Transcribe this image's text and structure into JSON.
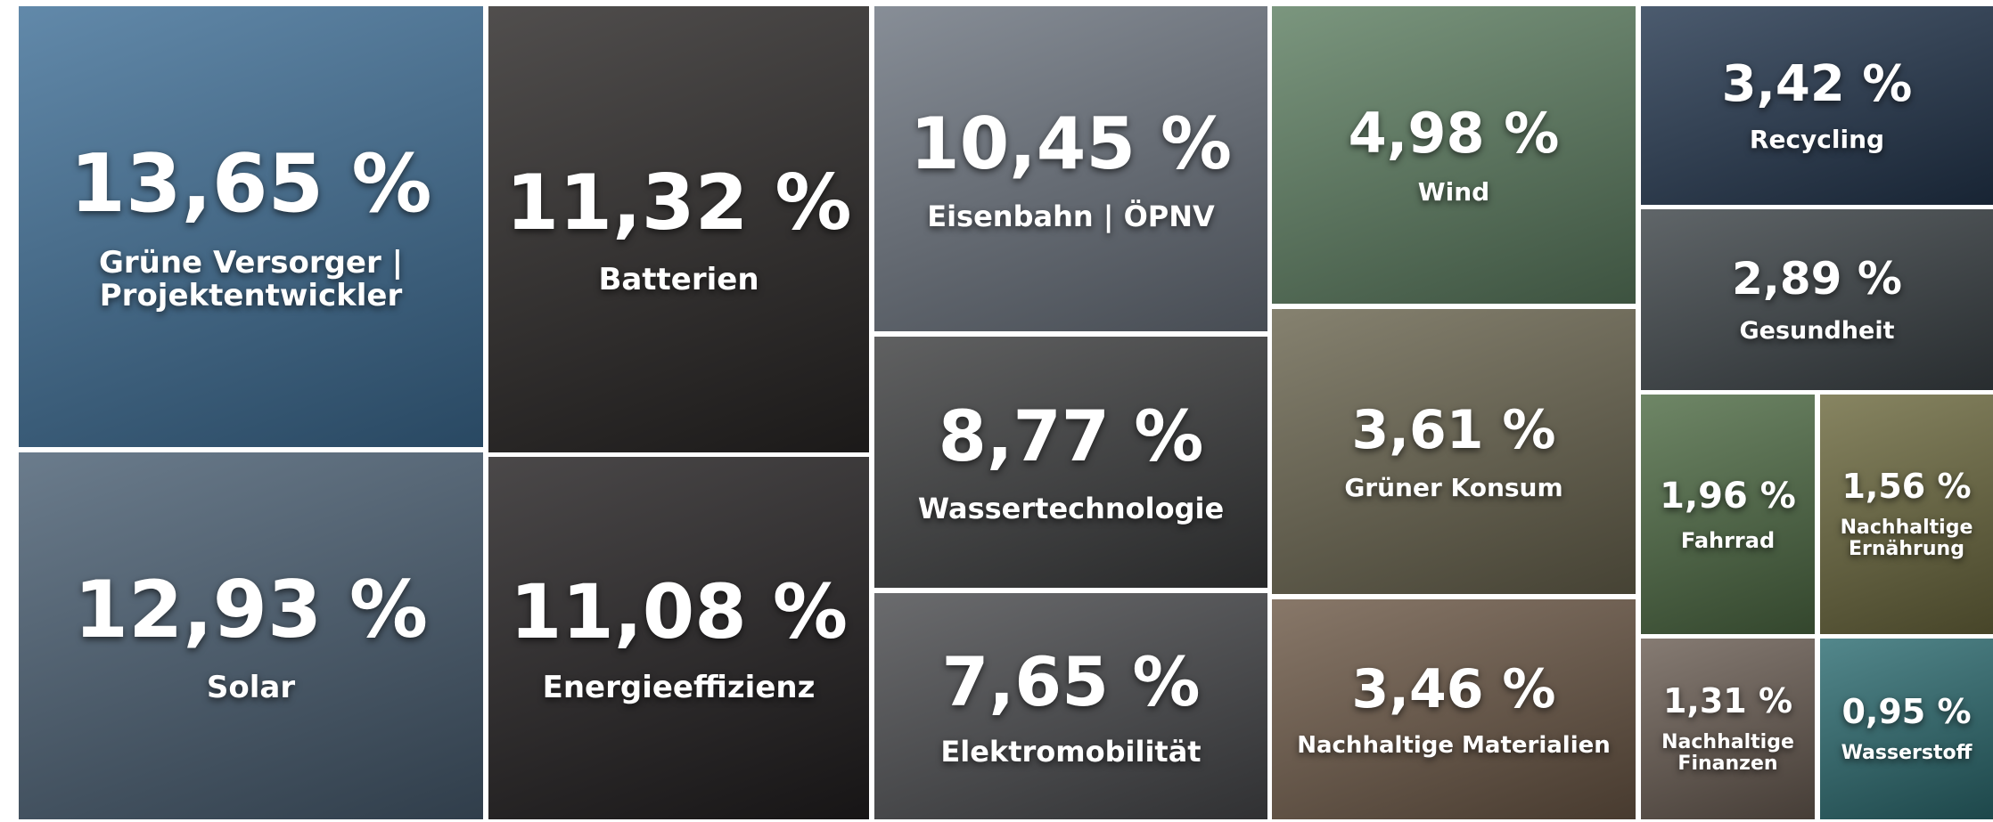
{
  "chart_data": {
    "type": "treemap",
    "categories": [
      "Grüne Versorger | Projektentwickler",
      "Solar",
      "Batterien",
      "Energieeffizienz",
      "Eisenbahn | ÖPNV",
      "Wassertechnologie",
      "Elektromobilität",
      "Wind",
      "Grüner Konsum",
      "Nachhaltige Materialien",
      "Recycling",
      "Gesundheit",
      "Fahrrad",
      "Nachhaltige Ernährung",
      "Nachhaltige Finanzen",
      "Wasserstoff"
    ],
    "values": [
      13.65,
      12.93,
      11.32,
      11.08,
      10.45,
      8.77,
      7.65,
      4.98,
      3.61,
      3.46,
      3.42,
      2.89,
      1.96,
      1.56,
      1.31,
      0.95
    ],
    "value_labels": [
      "13,65 %",
      "12,93 %",
      "11,32 %",
      "11,08 %",
      "10,45 %",
      "8,77 %",
      "7,65 %",
      "4,98 %",
      "3,61 %",
      "3,46 %",
      "3,42 %",
      "2,89 %",
      "1,96 %",
      "1,56 %",
      "1,31 %",
      "0,95 %"
    ],
    "colors": [
      "#3f6f97",
      "#4a5f73",
      "#2a2726",
      "#232021",
      "#6d7580",
      "#3d3e3f",
      "#4a4b4e",
      "#5e7f62",
      "#6b6650",
      "#6e5a48",
      "#24374f",
      "#3d4448",
      "#4f6c45",
      "#6d6a3f",
      "#6b5e54",
      "#2d6d72"
    ]
  }
}
